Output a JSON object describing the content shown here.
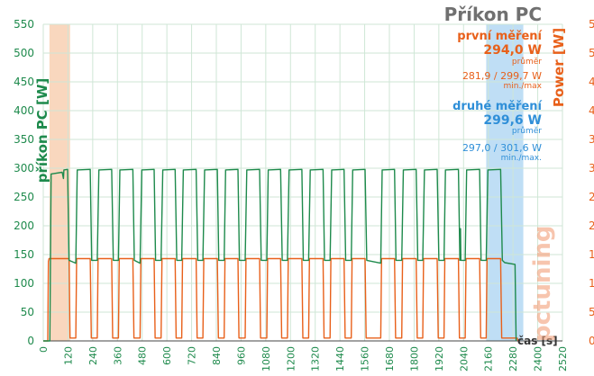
{
  "chart_data": {
    "type": "line",
    "title": "Příkon PC",
    "xlabel": "čas [s]",
    "ylabel_left": "příkon PC [W]",
    "ylabel_right": "Power [W]",
    "xlim": [
      0,
      2520
    ],
    "ylim": [
      0,
      550
    ],
    "x_ticks": [
      0,
      120,
      240,
      360,
      480,
      600,
      720,
      840,
      960,
      1080,
      1200,
      1320,
      1440,
      1560,
      1680,
      1800,
      1920,
      2040,
      2160,
      2280,
      2400,
      2520
    ],
    "y_ticks": [
      0,
      50,
      100,
      150,
      200,
      250,
      300,
      350,
      400,
      450,
      500,
      550
    ],
    "grid": true,
    "colors": {
      "green": "#1e8a4c",
      "orange": "#e8601a",
      "blue": "#2f8fd8",
      "band_orange": "#f7c9a8",
      "band_blue": "#a9d3f2"
    },
    "shaded_regions": [
      {
        "x": [
          30,
          130
        ],
        "color": "orange"
      },
      {
        "x": [
          2150,
          2330
        ],
        "color": "blue"
      }
    ],
    "series": [
      {
        "color": "green",
        "points": [
          [
            0,
            0
          ],
          [
            32,
            0
          ],
          [
            38,
            290
          ],
          [
            92,
            293
          ],
          [
            98,
            282
          ],
          [
            100,
            297
          ],
          [
            118,
            298
          ],
          [
            125,
            140
          ],
          [
            158,
            135
          ],
          [
            165,
            297
          ],
          [
            228,
            298
          ],
          [
            235,
            140
          ],
          [
            262,
            140
          ],
          [
            270,
            297
          ],
          [
            332,
            298
          ],
          [
            340,
            140
          ],
          [
            365,
            140
          ],
          [
            372,
            297
          ],
          [
            435,
            298
          ],
          [
            442,
            140
          ],
          [
            470,
            135
          ],
          [
            478,
            297
          ],
          [
            538,
            298
          ],
          [
            545,
            140
          ],
          [
            572,
            140
          ],
          [
            580,
            297
          ],
          [
            640,
            298
          ],
          [
            648,
            140
          ],
          [
            672,
            140
          ],
          [
            680,
            297
          ],
          [
            742,
            298
          ],
          [
            750,
            140
          ],
          [
            775,
            140
          ],
          [
            783,
            297
          ],
          [
            845,
            298
          ],
          [
            852,
            140
          ],
          [
            878,
            140
          ],
          [
            885,
            297
          ],
          [
            945,
            298
          ],
          [
            952,
            140
          ],
          [
            980,
            140
          ],
          [
            988,
            297
          ],
          [
            1050,
            298
          ],
          [
            1058,
            140
          ],
          [
            1085,
            140
          ],
          [
            1092,
            297
          ],
          [
            1152,
            298
          ],
          [
            1160,
            140
          ],
          [
            1185,
            140
          ],
          [
            1193,
            297
          ],
          [
            1255,
            298
          ],
          [
            1262,
            140
          ],
          [
            1288,
            140
          ],
          [
            1296,
            297
          ],
          [
            1358,
            298
          ],
          [
            1365,
            140
          ],
          [
            1392,
            140
          ],
          [
            1400,
            297
          ],
          [
            1460,
            298
          ],
          [
            1468,
            140
          ],
          [
            1495,
            140
          ],
          [
            1502,
            297
          ],
          [
            1562,
            298
          ],
          [
            1570,
            140
          ],
          [
            1638,
            135
          ],
          [
            1645,
            297
          ],
          [
            1705,
            298
          ],
          [
            1712,
            140
          ],
          [
            1740,
            140
          ],
          [
            1748,
            297
          ],
          [
            1810,
            298
          ],
          [
            1818,
            140
          ],
          [
            1842,
            140
          ],
          [
            1850,
            297
          ],
          [
            1912,
            298
          ],
          [
            1920,
            140
          ],
          [
            1945,
            140
          ],
          [
            1952,
            297
          ],
          [
            2015,
            298
          ],
          [
            2022,
            140
          ],
          [
            2025,
            195
          ],
          [
            2027,
            140
          ],
          [
            2048,
            140
          ],
          [
            2055,
            297
          ],
          [
            2118,
            298
          ],
          [
            2125,
            140
          ],
          [
            2150,
            140
          ],
          [
            2158,
            297
          ],
          [
            2220,
            298
          ],
          [
            2228,
            140
          ],
          [
            2240,
            136
          ],
          [
            2290,
            133
          ],
          [
            2295,
            0
          ]
        ]
      },
      {
        "color": "orange",
        "points": [
          [
            0,
            0
          ],
          [
            22,
            0
          ],
          [
            25,
            138
          ],
          [
            28,
            143
          ],
          [
            125,
            143
          ],
          [
            130,
            5
          ],
          [
            158,
            5
          ],
          [
            162,
            143
          ],
          [
            228,
            143
          ],
          [
            233,
            5
          ],
          [
            262,
            5
          ],
          [
            266,
            143
          ],
          [
            332,
            143
          ],
          [
            337,
            5
          ],
          [
            365,
            5
          ],
          [
            369,
            143
          ],
          [
            435,
            143
          ],
          [
            440,
            5
          ],
          [
            470,
            5
          ],
          [
            474,
            143
          ],
          [
            538,
            143
          ],
          [
            543,
            5
          ],
          [
            572,
            5
          ],
          [
            576,
            143
          ],
          [
            640,
            143
          ],
          [
            645,
            5
          ],
          [
            672,
            5
          ],
          [
            676,
            143
          ],
          [
            742,
            143
          ],
          [
            747,
            5
          ],
          [
            775,
            5
          ],
          [
            779,
            143
          ],
          [
            845,
            143
          ],
          [
            850,
            5
          ],
          [
            878,
            5
          ],
          [
            882,
            143
          ],
          [
            945,
            143
          ],
          [
            950,
            5
          ],
          [
            980,
            5
          ],
          [
            984,
            143
          ],
          [
            1050,
            143
          ],
          [
            1055,
            5
          ],
          [
            1085,
            5
          ],
          [
            1089,
            143
          ],
          [
            1152,
            143
          ],
          [
            1157,
            5
          ],
          [
            1185,
            5
          ],
          [
            1189,
            143
          ],
          [
            1255,
            143
          ],
          [
            1260,
            5
          ],
          [
            1288,
            5
          ],
          [
            1292,
            143
          ],
          [
            1358,
            143
          ],
          [
            1363,
            5
          ],
          [
            1392,
            5
          ],
          [
            1396,
            143
          ],
          [
            1460,
            143
          ],
          [
            1465,
            5
          ],
          [
            1495,
            5
          ],
          [
            1499,
            143
          ],
          [
            1562,
            143
          ],
          [
            1567,
            5
          ],
          [
            1638,
            5
          ],
          [
            1642,
            143
          ],
          [
            1705,
            143
          ],
          [
            1710,
            5
          ],
          [
            1740,
            5
          ],
          [
            1744,
            143
          ],
          [
            1810,
            143
          ],
          [
            1815,
            5
          ],
          [
            1842,
            5
          ],
          [
            1846,
            143
          ],
          [
            1912,
            143
          ],
          [
            1917,
            5
          ],
          [
            1945,
            5
          ],
          [
            1949,
            143
          ],
          [
            2015,
            143
          ],
          [
            2020,
            5
          ],
          [
            2048,
            5
          ],
          [
            2052,
            143
          ],
          [
            2118,
            143
          ],
          [
            2123,
            5
          ],
          [
            2150,
            5
          ],
          [
            2154,
            143
          ],
          [
            2220,
            143
          ],
          [
            2225,
            5
          ],
          [
            2300,
            5
          ],
          [
            2305,
            0
          ]
        ]
      }
    ],
    "annotations": {
      "first": {
        "heading": "první měření",
        "value": "294,0 W",
        "value_note": "průměr",
        "range": "281,9 / 299,7 W",
        "range_note": "min./max"
      },
      "second": {
        "heading": "druhé měření",
        "value": "299,6 W",
        "value_note": "průměr",
        "range": "297,0 / 301,6 W",
        "range_note": "min./max."
      }
    },
    "watermark": "pctuning"
  }
}
